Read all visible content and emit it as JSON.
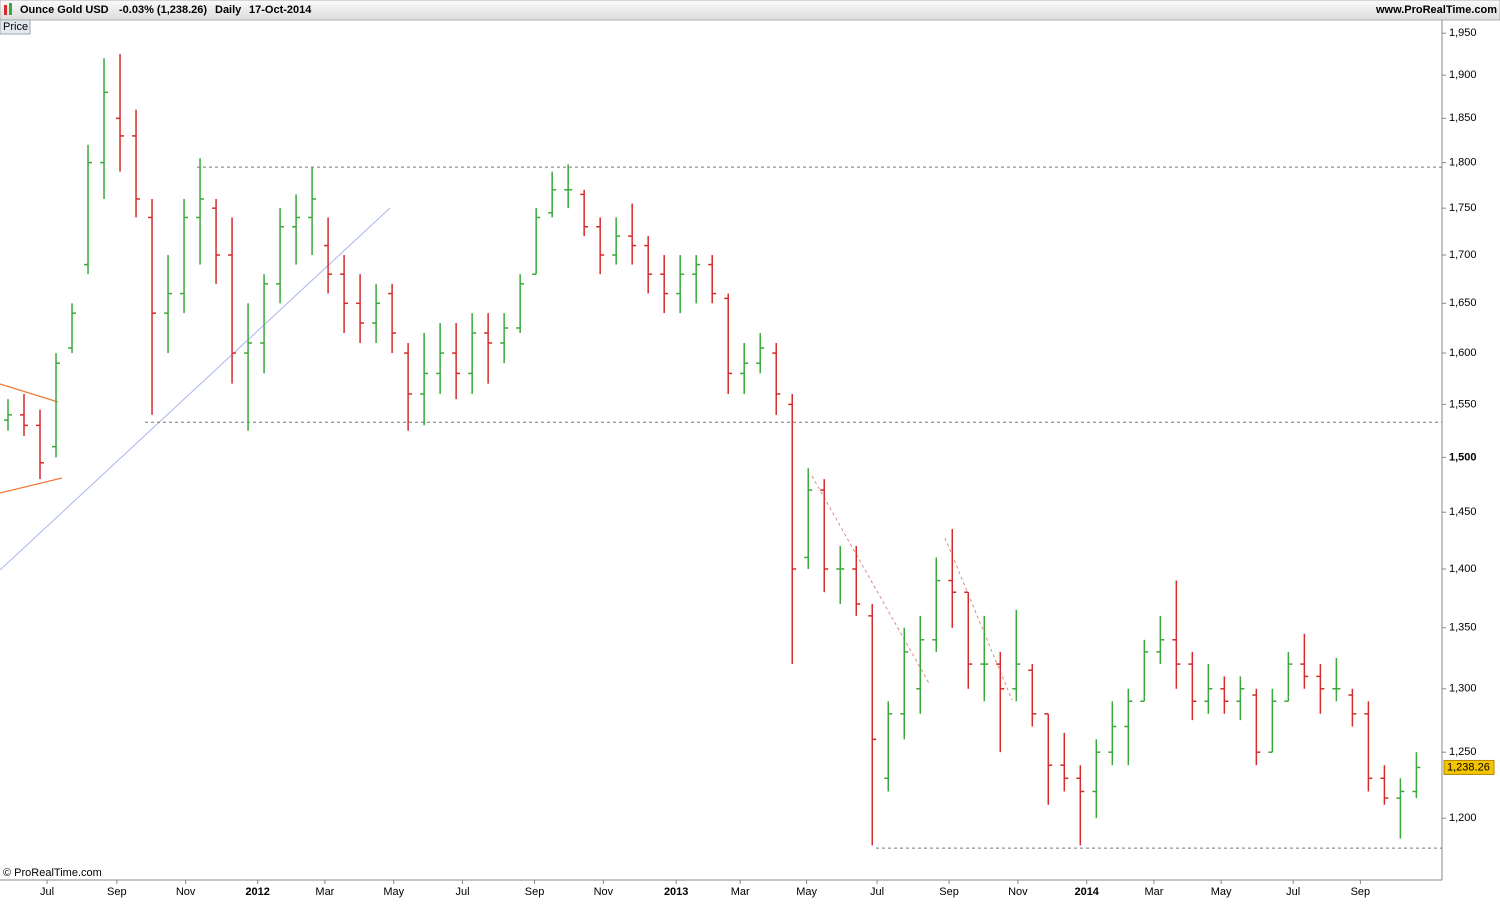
{
  "header": {
    "instrument": "Ounce Gold USD",
    "change": "-0.03% (1,238.26)",
    "period": "Daily",
    "date": "17-Oct-2014",
    "site": "www.ProRealTime.com"
  },
  "panel_label": "Price",
  "copyright": "© ProRealTime.com",
  "chart_data": {
    "type": "ohlc",
    "log_scale": true,
    "up_color": "#3aa83a",
    "down_color": "#d62b2b",
    "ylim": [
      1155,
      1966
    ],
    "yticks": [
      {
        "value": 1200,
        "label": "1,200"
      },
      {
        "value": 1250,
        "label": "1,250"
      },
      {
        "value": 1300,
        "label": "1,300"
      },
      {
        "value": 1350,
        "label": "1,350"
      },
      {
        "value": 1400,
        "label": "1,400"
      },
      {
        "value": 1450,
        "label": "1,450"
      },
      {
        "value": 1500,
        "label": "1,500"
      },
      {
        "value": 1550,
        "label": "1,550"
      },
      {
        "value": 1600,
        "label": "1,600"
      },
      {
        "value": 1650,
        "label": "1,650"
      },
      {
        "value": 1700,
        "label": "1,700"
      },
      {
        "value": 1750,
        "label": "1,750"
      },
      {
        "value": 1800,
        "label": "1,800"
      },
      {
        "value": 1850,
        "label": "1,850"
      },
      {
        "value": 1900,
        "label": "1,900"
      },
      {
        "value": 1950,
        "label": "1,950"
      }
    ],
    "xlim": [
      -0.5,
      89.6
    ],
    "xticks": [
      {
        "value": 2.44,
        "label": "Jul"
      },
      {
        "value": 6.8,
        "label": "Sep"
      },
      {
        "value": 11.1,
        "label": "Nov"
      },
      {
        "value": 15.6,
        "label": "2012"
      },
      {
        "value": 19.8,
        "label": "Mar"
      },
      {
        "value": 24.1,
        "label": "May"
      },
      {
        "value": 28.4,
        "label": "Jul"
      },
      {
        "value": 32.9,
        "label": "Sep"
      },
      {
        "value": 37.2,
        "label": "Nov"
      },
      {
        "value": 41.75,
        "label": "2013"
      },
      {
        "value": 45.75,
        "label": "Mar"
      },
      {
        "value": 49.9,
        "label": "May"
      },
      {
        "value": 54.3,
        "label": "Jul"
      },
      {
        "value": 58.8,
        "label": "Sep"
      },
      {
        "value": 63.1,
        "label": "Nov"
      },
      {
        "value": 67.4,
        "label": "2014"
      },
      {
        "value": 71.6,
        "label": "Mar"
      },
      {
        "value": 75.8,
        "label": "May"
      },
      {
        "value": 80.3,
        "label": "Jul"
      },
      {
        "value": 84.5,
        "label": "Sep"
      }
    ],
    "open": [
      1535,
      1540,
      1530,
      1510,
      1605,
      1690,
      1800,
      1850,
      1830,
      1740,
      1640,
      1660,
      1740,
      1750,
      1700,
      1600,
      1610,
      1670,
      1730,
      1740,
      1710,
      1680,
      1650,
      1630,
      1660,
      1600,
      1560,
      1580,
      1600,
      1580,
      1620,
      1610,
      1625,
      1680,
      1745,
      1770,
      1765,
      1730,
      1700,
      1720,
      1710,
      1680,
      1660,
      1680,
      1690,
      1655,
      1580,
      1590,
      1600,
      1550,
      1410,
      1470,
      1400,
      1400,
      1360,
      1230,
      1280,
      1300,
      1340,
      1390,
      1380,
      1320,
      1320,
      1300,
      1315,
      1280,
      1240,
      1230,
      1220,
      1250,
      1270,
      1290,
      1330,
      1340,
      1320,
      1290,
      1300,
      1290,
      1295,
      1250,
      1290,
      1320,
      1310,
      1300,
      1295,
      1280,
      1230,
      1215,
      1220
    ],
    "high": [
      1555,
      1560,
      1545,
      1600,
      1650,
      1820,
      1920,
      1925,
      1860,
      1760,
      1700,
      1760,
      1805,
      1760,
      1740,
      1650,
      1680,
      1750,
      1765,
      1795,
      1740,
      1700,
      1680,
      1670,
      1670,
      1610,
      1620,
      1630,
      1630,
      1640,
      1640,
      1640,
      1680,
      1750,
      1790,
      1798,
      1770,
      1740,
      1740,
      1755,
      1720,
      1700,
      1700,
      1700,
      1700,
      1660,
      1610,
      1620,
      1610,
      1560,
      1490,
      1480,
      1420,
      1420,
      1370,
      1290,
      1350,
      1360,
      1410,
      1435,
      1380,
      1360,
      1330,
      1365,
      1320,
      1280,
      1265,
      1240,
      1260,
      1290,
      1300,
      1340,
      1360,
      1390,
      1330,
      1320,
      1310,
      1310,
      1300,
      1300,
      1330,
      1345,
      1320,
      1325,
      1300,
      1290,
      1240,
      1230,
      1250
    ],
    "low": [
      1525,
      1520,
      1480,
      1500,
      1600,
      1680,
      1760,
      1790,
      1740,
      1540,
      1600,
      1640,
      1690,
      1670,
      1570,
      1525,
      1580,
      1650,
      1690,
      1700,
      1660,
      1620,
      1610,
      1610,
      1600,
      1525,
      1530,
      1560,
      1555,
      1560,
      1570,
      1590,
      1620,
      1680,
      1740,
      1750,
      1720,
      1680,
      1690,
      1690,
      1660,
      1640,
      1640,
      1650,
      1650,
      1560,
      1560,
      1580,
      1540,
      1320,
      1400,
      1380,
      1370,
      1360,
      1180,
      1220,
      1260,
      1280,
      1330,
      1350,
      1300,
      1290,
      1250,
      1290,
      1270,
      1210,
      1220,
      1180,
      1200,
      1240,
      1240,
      1290,
      1320,
      1300,
      1275,
      1280,
      1280,
      1275,
      1240,
      1250,
      1290,
      1300,
      1280,
      1290,
      1270,
      1220,
      1210,
      1185,
      1215
    ],
    "close": [
      1540,
      1530,
      1495,
      1590,
      1640,
      1800,
      1880,
      1830,
      1760,
      1640,
      1660,
      1740,
      1760,
      1700,
      1600,
      1610,
      1670,
      1730,
      1740,
      1760,
      1680,
      1650,
      1630,
      1650,
      1620,
      1560,
      1580,
      1600,
      1580,
      1620,
      1610,
      1625,
      1670,
      1740,
      1770,
      1770,
      1730,
      1700,
      1720,
      1710,
      1680,
      1660,
      1680,
      1690,
      1660,
      1580,
      1590,
      1605,
      1560,
      1400,
      1470,
      1400,
      1400,
      1370,
      1260,
      1280,
      1330,
      1340,
      1390,
      1380,
      1320,
      1320,
      1300,
      1320,
      1280,
      1240,
      1230,
      1220,
      1250,
      1270,
      1290,
      1330,
      1340,
      1320,
      1290,
      1300,
      1290,
      1300,
      1250,
      1290,
      1320,
      1310,
      1300,
      1300,
      1280,
      1230,
      1215,
      1220,
      1238.26
    ],
    "last_price_label": "1,238.26",
    "hlines": [
      1795,
      1533,
      1178
    ]
  }
}
